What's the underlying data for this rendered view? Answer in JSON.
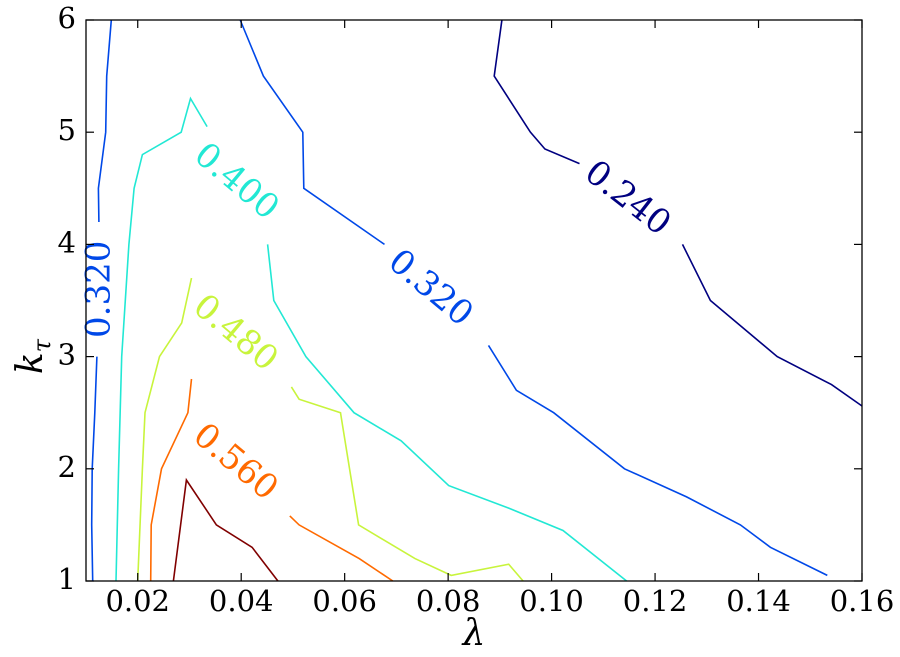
{
  "chart_data": {
    "type": "contour",
    "xlabel": "λ",
    "ylabel_main": "k",
    "ylabel_sub": "τ",
    "xlim": [
      0.01,
      0.16
    ],
    "ylim": [
      1,
      6
    ],
    "x_ticks": [
      "0.02",
      "0.04",
      "0.06",
      "0.08",
      "0.10",
      "0.12",
      "0.14",
      "0.16"
    ],
    "x_tick_values": [
      0.02,
      0.04,
      0.06,
      0.08,
      0.1,
      0.12,
      0.14,
      0.16
    ],
    "y_ticks": [
      "1",
      "2",
      "3",
      "4",
      "5",
      "6"
    ],
    "y_tick_values": [
      1,
      2,
      3,
      4,
      5,
      6
    ],
    "grid": false,
    "levels": [
      {
        "level": "0.240",
        "color": "#000080",
        "segments": [
          [
            [
              0.0904,
              6.0
            ],
            [
              0.0889,
              5.5
            ],
            [
              0.0959,
              5.0
            ],
            [
              0.0987,
              4.85
            ],
            [
              0.1054,
              4.72
            ]
          ],
          [
            [
              0.1253,
              4.0
            ],
            [
              0.1307,
              3.5
            ],
            [
              0.1436,
              3.0
            ],
            [
              0.1541,
              2.75
            ],
            [
              0.16,
              2.56
            ]
          ]
        ],
        "labels": [
          {
            "text": "0.240",
            "x": 0.1145,
            "y": 4.4,
            "angle": 38
          }
        ]
      },
      {
        "level": "0.320",
        "color": "#0048e8",
        "segments": [
          [
            [
              0.0398,
              6.0
            ],
            [
              0.0443,
              5.5
            ],
            [
              0.0519,
              5.0
            ],
            [
              0.0521,
              4.5
            ],
            [
              0.0677,
              4.0
            ]
          ],
          [
            [
              0.0878,
              3.1
            ],
            [
              0.0932,
              2.7
            ],
            [
              0.1004,
              2.5
            ],
            [
              0.1141,
              2.0
            ],
            [
              0.1261,
              1.75
            ],
            [
              0.1365,
              1.5
            ],
            [
              0.1423,
              1.3
            ],
            [
              0.1533,
              1.05
            ]
          ],
          [
            [
              0.0149,
              6.0
            ],
            [
              0.014,
              5.5
            ],
            [
              0.0138,
              5.0
            ],
            [
              0.0124,
              4.5
            ],
            [
              0.0125,
              4.2
            ]
          ],
          [
            [
              0.0121,
              3.0
            ],
            [
              0.0117,
              2.5
            ],
            [
              0.0112,
              2.0
            ],
            [
              0.0111,
              1.5
            ],
            [
              0.0113,
              1.0
            ]
          ]
        ],
        "labels": [
          {
            "text": "0.320",
            "x": 0.0764,
            "y": 3.6,
            "angle": 40
          },
          {
            "text": "0.320",
            "x": 0.0128,
            "y": 3.6,
            "angle": -90
          }
        ]
      },
      {
        "level": "0.400",
        "color": "#22e8d4",
        "segments": [
          [
            [
              0.0334,
              5.05
            ],
            [
              0.0302,
              5.3
            ],
            [
              0.0284,
              5.0
            ],
            [
              0.0209,
              4.8
            ],
            [
              0.0193,
              4.5
            ],
            [
              0.0183,
              4.0
            ],
            [
              0.0169,
              3.0
            ],
            [
              0.0163,
              2.0
            ],
            [
              0.0158,
              1.0
            ]
          ],
          [
            [
              0.0451,
              4.0
            ],
            [
              0.0463,
              3.5
            ],
            [
              0.0525,
              3.0
            ],
            [
              0.0618,
              2.5
            ],
            [
              0.0709,
              2.25
            ],
            [
              0.0801,
              1.85
            ],
            [
              0.0917,
              1.65
            ],
            [
              0.1022,
              1.45
            ],
            [
              0.1145,
              1.0
            ]
          ]
        ],
        "labels": [
          {
            "text": "0.400",
            "x": 0.0389,
            "y": 4.55,
            "angle": 40
          }
        ]
      },
      {
        "level": "0.480",
        "color": "#c8f43c",
        "segments": [
          [
            [
              0.0304,
              3.7
            ],
            [
              0.0285,
              3.3
            ],
            [
              0.0242,
              3.0
            ],
            [
              0.0214,
              2.5
            ],
            [
              0.0209,
              2.0
            ],
            [
              0.02,
              1.0
            ]
          ],
          [
            [
              0.0497,
              2.73
            ],
            [
              0.0512,
              2.62
            ],
            [
              0.0592,
              2.5
            ],
            [
              0.0627,
              1.5
            ],
            [
              0.0736,
              1.2
            ],
            [
              0.0806,
              1.05
            ],
            [
              0.0917,
              1.15
            ],
            [
              0.0945,
              1.0
            ]
          ]
        ],
        "labels": [
          {
            "text": "0.480",
            "x": 0.0387,
            "y": 3.2,
            "angle": 40
          }
        ]
      },
      {
        "level": "0.560",
        "color": "#ff6a00",
        "segments": [
          [
            [
              0.0304,
              2.8
            ],
            [
              0.0297,
              2.5
            ],
            [
              0.0246,
              2.0
            ],
            [
              0.0226,
              1.5
            ],
            [
              0.0225,
              1.0
            ]
          ],
          [
            [
              0.0494,
              1.58
            ],
            [
              0.0512,
              1.5
            ],
            [
              0.0628,
              1.2
            ],
            [
              0.0693,
              1.0
            ]
          ]
        ],
        "labels": [
          {
            "text": "0.560",
            "x": 0.0387,
            "y": 2.05,
            "angle": 40
          }
        ]
      },
      {
        "level": "",
        "color": "#800000",
        "segments": [
          [
            [
              0.0269,
              1.0
            ],
            [
              0.0294,
              1.9
            ],
            [
              0.0352,
              1.5
            ],
            [
              0.0421,
              1.3
            ],
            [
              0.0471,
              1.0
            ]
          ]
        ],
        "labels": []
      }
    ]
  }
}
